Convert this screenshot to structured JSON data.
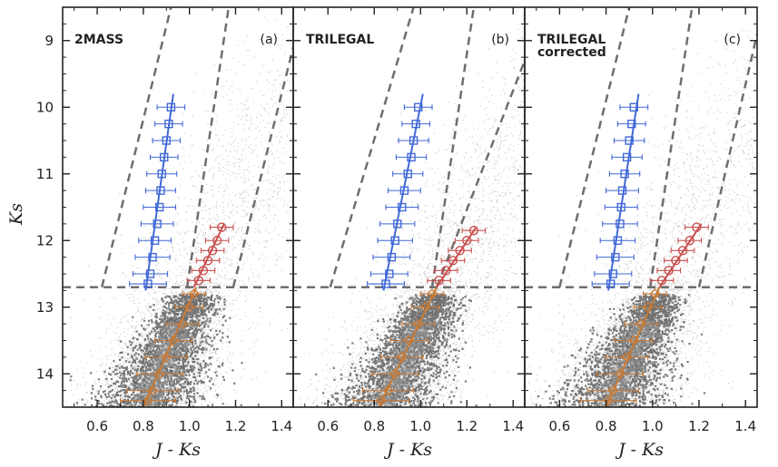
{
  "chart_data": {
    "type": "scatter",
    "title": "",
    "xlabel": "J - Ks",
    "ylabel": "Ks",
    "xlim": [
      0.45,
      1.45
    ],
    "ylim": [
      14.5,
      8.5
    ],
    "x_ticks": [
      0.6,
      0.8,
      1.0,
      1.2,
      1.4
    ],
    "x_tick_labels": [
      "0.6",
      "0.8",
      "1.0",
      "1.2",
      "1.4"
    ],
    "y_ticks": [
      9,
      10,
      11,
      12,
      13,
      14
    ],
    "y_tick_labels": [
      "9",
      "10",
      "11",
      "12",
      "13",
      "14"
    ],
    "magnitude_cut": 12.7,
    "colors": {
      "blue": "#4169d6",
      "red": "#c8504f",
      "orange": "#c97a35",
      "dashed": "#6e6e6e"
    },
    "panels": [
      {
        "name": "2MASS",
        "name_line2": "",
        "letter": "(a)",
        "boundaries": [
          {
            "x1": 0.62,
            "y1": 12.7,
            "x2": 0.92,
            "y2": 8.5
          },
          {
            "x1": 0.99,
            "y1": 12.7,
            "x2": 1.17,
            "y2": 8.5
          },
          {
            "x1": 1.19,
            "y1": 12.7,
            "x2": 1.45,
            "y2": 9.1
          }
        ],
        "rc_clump": {
          "ks": [
            10.0,
            10.25,
            10.5,
            10.75,
            11.0,
            11.25,
            11.5,
            11.75,
            12.0,
            12.25,
            12.5,
            12.65
          ],
          "jk": [
            0.92,
            0.91,
            0.9,
            0.89,
            0.88,
            0.875,
            0.87,
            0.86,
            0.85,
            0.84,
            0.83,
            0.82
          ],
          "err": [
            0.06,
            0.06,
            0.06,
            0.06,
            0.065,
            0.065,
            0.07,
            0.07,
            0.07,
            0.075,
            0.075,
            0.08
          ],
          "fit": [
            {
              "jk": 0.93,
              "ks": 9.8
            },
            {
              "jk": 0.81,
              "ks": 12.75
            }
          ]
        },
        "rgb_bright": {
          "ks": [
            11.8,
            12.0,
            12.15,
            12.3,
            12.45,
            12.6
          ],
          "jk": [
            1.14,
            1.12,
            1.1,
            1.08,
            1.06,
            1.04
          ],
          "err": [
            0.05,
            0.05,
            0.05,
            0.05,
            0.05,
            0.05
          ],
          "fit": [
            {
              "jk": 1.15,
              "ks": 11.75
            },
            {
              "jk": 1.02,
              "ks": 12.7
            }
          ]
        },
        "rgb_faint": {
          "ks": [
            12.8,
            13.0,
            13.25,
            13.5,
            13.75,
            14.0,
            14.25,
            14.4
          ],
          "jk": [
            1.02,
            1.0,
            0.97,
            0.93,
            0.9,
            0.87,
            0.84,
            0.82
          ],
          "err": [
            0.05,
            0.06,
            0.07,
            0.08,
            0.09,
            0.1,
            0.11,
            0.12
          ],
          "fit": [
            {
              "jk": 1.03,
              "ks": 12.7
            },
            {
              "jk": 0.8,
              "ks": 14.5
            }
          ]
        },
        "density": {
          "x0": 0.8,
          "y0": 14.5,
          "x1": 1.02,
          "y1": 12.75
        }
      },
      {
        "name": "TRILEGAL",
        "name_line2": "",
        "letter": "(b)",
        "boundaries": [
          {
            "x1": 0.61,
            "y1": 12.7,
            "x2": 0.97,
            "y2": 8.5
          },
          {
            "x1": 1.05,
            "y1": 12.7,
            "x2": 1.23,
            "y2": 8.5
          },
          {
            "x1": 1.07,
            "y1": 12.7,
            "x2": 1.45,
            "y2": 9.3
          }
        ],
        "rc_clump": {
          "ks": [
            10.0,
            10.25,
            10.5,
            10.75,
            11.0,
            11.25,
            11.5,
            11.75,
            12.0,
            12.25,
            12.5,
            12.65
          ],
          "jk": [
            0.99,
            0.98,
            0.97,
            0.96,
            0.945,
            0.93,
            0.92,
            0.9,
            0.89,
            0.875,
            0.865,
            0.85
          ],
          "err": [
            0.06,
            0.06,
            0.065,
            0.065,
            0.065,
            0.07,
            0.07,
            0.075,
            0.075,
            0.08,
            0.08,
            0.08
          ],
          "fit": [
            {
              "jk": 1.01,
              "ks": 9.8
            },
            {
              "jk": 0.84,
              "ks": 12.75
            }
          ]
        },
        "rgb_bright": {
          "ks": [
            11.85,
            12.0,
            12.15,
            12.3,
            12.45,
            12.6
          ],
          "jk": [
            1.23,
            1.2,
            1.17,
            1.14,
            1.11,
            1.08
          ],
          "err": [
            0.05,
            0.05,
            0.05,
            0.05,
            0.05,
            0.05
          ],
          "fit": [
            {
              "jk": 1.24,
              "ks": 11.8
            },
            {
              "jk": 1.07,
              "ks": 12.7
            }
          ]
        },
        "rgb_faint": {
          "ks": [
            12.8,
            13.0,
            13.25,
            13.5,
            13.75,
            14.0,
            14.25,
            14.4
          ],
          "jk": [
            1.05,
            1.02,
            0.99,
            0.95,
            0.92,
            0.89,
            0.86,
            0.83
          ],
          "err": [
            0.05,
            0.06,
            0.07,
            0.08,
            0.09,
            0.1,
            0.11,
            0.12
          ],
          "fit": [
            {
              "jk": 1.07,
              "ks": 12.7
            },
            {
              "jk": 0.82,
              "ks": 14.5
            }
          ]
        },
        "density": {
          "x0": 0.83,
          "y0": 14.5,
          "x1": 1.07,
          "y1": 12.75
        }
      },
      {
        "name": "TRILEGAL",
        "name_line2": "corrected",
        "letter": "(c)",
        "boundaries": [
          {
            "x1": 0.6,
            "y1": 12.7,
            "x2": 0.9,
            "y2": 8.5
          },
          {
            "x1": 0.99,
            "y1": 12.7,
            "x2": 1.17,
            "y2": 8.5
          },
          {
            "x1": 1.2,
            "y1": 12.7,
            "x2": 1.45,
            "y2": 8.9
          }
        ],
        "rc_clump": {
          "ks": [
            10.0,
            10.25,
            10.5,
            10.75,
            11.0,
            11.25,
            11.5,
            11.75,
            12.0,
            12.25,
            12.5,
            12.65
          ],
          "jk": [
            0.92,
            0.91,
            0.9,
            0.89,
            0.88,
            0.87,
            0.865,
            0.86,
            0.85,
            0.84,
            0.83,
            0.82
          ],
          "err": [
            0.06,
            0.06,
            0.065,
            0.065,
            0.065,
            0.07,
            0.07,
            0.075,
            0.075,
            0.08,
            0.08,
            0.08
          ],
          "fit": [
            {
              "jk": 0.94,
              "ks": 9.8
            },
            {
              "jk": 0.81,
              "ks": 12.75
            }
          ]
        },
        "rgb_bright": {
          "ks": [
            11.8,
            12.0,
            12.15,
            12.3,
            12.45,
            12.6
          ],
          "jk": [
            1.19,
            1.16,
            1.13,
            1.1,
            1.07,
            1.04
          ],
          "err": [
            0.05,
            0.05,
            0.05,
            0.05,
            0.05,
            0.05
          ],
          "fit": [
            {
              "jk": 1.21,
              "ks": 11.75
            },
            {
              "jk": 1.03,
              "ks": 12.7
            }
          ]
        },
        "rgb_faint": {
          "ks": [
            12.8,
            13.0,
            13.25,
            13.5,
            13.75,
            14.0,
            14.25,
            14.4
          ],
          "jk": [
            1.01,
            0.98,
            0.95,
            0.92,
            0.89,
            0.86,
            0.83,
            0.81
          ],
          "err": [
            0.05,
            0.06,
            0.07,
            0.08,
            0.09,
            0.1,
            0.11,
            0.12
          ],
          "fit": [
            {
              "jk": 1.03,
              "ks": 12.7
            },
            {
              "jk": 0.8,
              "ks": 14.5
            }
          ]
        },
        "density": {
          "x0": 0.8,
          "y0": 14.5,
          "x1": 1.03,
          "y1": 12.75
        }
      }
    ]
  }
}
